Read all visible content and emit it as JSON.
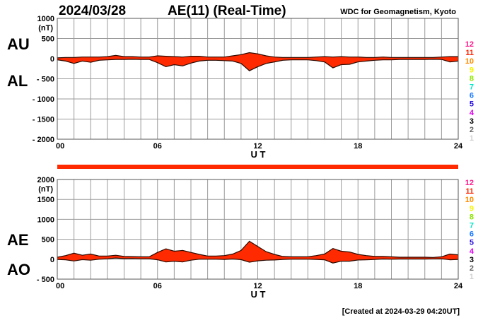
{
  "header": {
    "date": "2024/03/28",
    "title": "AE(11) (Real-Time)",
    "source": "WDC for Geomagnetism, Kyoto"
  },
  "footer": {
    "created": "[Created at 2024-03-29 04:20UT]"
  },
  "station_legend": [
    {
      "label": "12",
      "color": "#ff1a8c"
    },
    {
      "label": "11",
      "color": "#ff2200"
    },
    {
      "label": "10",
      "color": "#ff8c00"
    },
    {
      "label": "9",
      "color": "#f5f500"
    },
    {
      "label": "8",
      "color": "#8ce600"
    },
    {
      "label": "7",
      "color": "#00e6c8"
    },
    {
      "label": "6",
      "color": "#1a7aff"
    },
    {
      "label": "5",
      "color": "#2a10e0"
    },
    {
      "label": "4",
      "color": "#e000f0"
    },
    {
      "label": "3",
      "color": "#000000"
    },
    {
      "label": "2",
      "color": "#666666"
    },
    {
      "label": "1",
      "color": "#d0d0d0"
    }
  ],
  "fill_color": "#ff2a00",
  "chart_data": [
    {
      "type": "area",
      "title": "AU / AL",
      "labels": [
        "AU",
        "AL"
      ],
      "unit": "(nT)",
      "xlabel": "U T",
      "xlim": [
        0,
        24
      ],
      "ylim": [
        -2000,
        1000
      ],
      "xticks": [
        "00",
        "06",
        "12",
        "18",
        "24"
      ],
      "yticks": [
        "1000",
        "500",
        "0",
        "- 500",
        "- 1000",
        "- 1500",
        "- 2000"
      ],
      "ytick_values": [
        1000,
        500,
        0,
        -500,
        -1000,
        -1500,
        -2000
      ],
      "grid": true,
      "x": [
        0,
        0.5,
        1,
        1.5,
        2,
        2.5,
        3,
        3.5,
        4,
        4.5,
        5,
        5.5,
        6,
        6.5,
        7,
        7.5,
        8,
        8.5,
        9,
        9.5,
        10,
        10.5,
        11,
        11.5,
        12,
        12.5,
        13,
        13.5,
        14,
        14.5,
        15,
        15.5,
        16,
        16.5,
        17,
        17.5,
        18,
        18.5,
        19,
        19.5,
        20,
        20.5,
        21,
        21.5,
        22,
        22.5,
        23,
        23.5,
        24
      ],
      "series": [
        {
          "name": "AU",
          "values": [
            20,
            30,
            30,
            40,
            40,
            40,
            50,
            80,
            50,
            50,
            40,
            40,
            70,
            60,
            50,
            40,
            60,
            60,
            40,
            40,
            40,
            70,
            100,
            150,
            120,
            70,
            40,
            30,
            30,
            30,
            30,
            40,
            50,
            40,
            50,
            40,
            40,
            30,
            30,
            40,
            30,
            30,
            30,
            30,
            30,
            30,
            40,
            50,
            50
          ]
        },
        {
          "name": "AL",
          "values": [
            -30,
            -60,
            -120,
            -60,
            -90,
            -40,
            -30,
            -20,
            -20,
            -15,
            -20,
            -20,
            -100,
            -200,
            -150,
            -180,
            -110,
            -60,
            -40,
            -40,
            -50,
            -60,
            -120,
            -300,
            -200,
            -120,
            -80,
            -40,
            -30,
            -30,
            -30,
            -50,
            -80,
            -230,
            -150,
            -140,
            -80,
            -60,
            -40,
            -30,
            -30,
            -20,
            -20,
            -20,
            -20,
            -15,
            -20,
            -80,
            -60
          ]
        }
      ]
    },
    {
      "type": "area",
      "title": "AE / AO",
      "labels": [
        "AE",
        "AO"
      ],
      "unit": "(nT)",
      "xlabel": "U T",
      "xlim": [
        0,
        24
      ],
      "ylim": [
        -500,
        2000
      ],
      "xticks": [
        "00",
        "06",
        "12",
        "18",
        "24"
      ],
      "yticks": [
        "2000",
        "1500",
        "1000",
        "500",
        "0",
        "- 500"
      ],
      "ytick_values": [
        2000,
        1500,
        1000,
        500,
        0,
        -500
      ],
      "grid": true,
      "x": [
        0,
        0.5,
        1,
        1.5,
        2,
        2.5,
        3,
        3.5,
        4,
        4.5,
        5,
        5.5,
        6,
        6.5,
        7,
        7.5,
        8,
        8.5,
        9,
        9.5,
        10,
        10.5,
        11,
        11.5,
        12,
        12.5,
        13,
        13.5,
        14,
        14.5,
        15,
        15.5,
        16,
        16.5,
        17,
        17.5,
        18,
        18.5,
        19,
        19.5,
        20,
        20.5,
        21,
        21.5,
        22,
        22.5,
        23,
        23.5,
        24
      ],
      "series": [
        {
          "name": "AE",
          "values": [
            50,
            90,
            150,
            100,
            130,
            80,
            80,
            100,
            70,
            65,
            60,
            60,
            170,
            260,
            200,
            220,
            170,
            120,
            80,
            80,
            90,
            130,
            220,
            450,
            320,
            190,
            120,
            70,
            60,
            60,
            60,
            90,
            130,
            270,
            200,
            180,
            120,
            90,
            70,
            70,
            60,
            50,
            50,
            50,
            50,
            45,
            60,
            130,
            110
          ]
        },
        {
          "name": "AO",
          "values": [
            -5,
            -15,
            -45,
            -10,
            -25,
            0,
            10,
            30,
            15,
            18,
            10,
            10,
            -15,
            -70,
            -50,
            -70,
            -25,
            0,
            0,
            0,
            -5,
            5,
            -10,
            -75,
            -40,
            -25,
            -20,
            -5,
            0,
            0,
            0,
            -5,
            -15,
            -95,
            -50,
            -50,
            -20,
            -15,
            -5,
            5,
            0,
            5,
            5,
            5,
            5,
            8,
            10,
            -15,
            -5
          ]
        }
      ]
    }
  ]
}
